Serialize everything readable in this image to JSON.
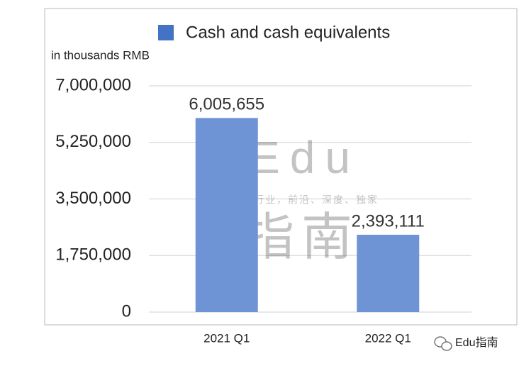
{
  "chart_data": {
    "type": "bar",
    "unit_label": "in thousands RMB",
    "categories": [
      "2021 Q1",
      "2022 Q1"
    ],
    "series": [
      {
        "name": "Cash and cash equivalents",
        "color": "#6f94d6",
        "values": [
          6005655,
          2393111
        ],
        "value_labels": [
          "6,005,655",
          "2,393,111"
        ]
      }
    ],
    "legend_color": "#4472c4",
    "ylim": [
      0,
      7000000
    ],
    "yticks": [
      {
        "value": 0,
        "label": "0"
      },
      {
        "value": 1750000,
        "label": "1,750,000"
      },
      {
        "value": 3500000,
        "label": "3,500,000"
      },
      {
        "value": 5250000,
        "label": "5,250,000"
      },
      {
        "value": 7000000,
        "label": "7,000,000"
      }
    ],
    "grid": true
  },
  "watermark": {
    "brand": "Edu",
    "name": "指南",
    "tagline": "教育行业，前沿、深度、独家"
  },
  "footer": {
    "account": "Edu指南"
  }
}
